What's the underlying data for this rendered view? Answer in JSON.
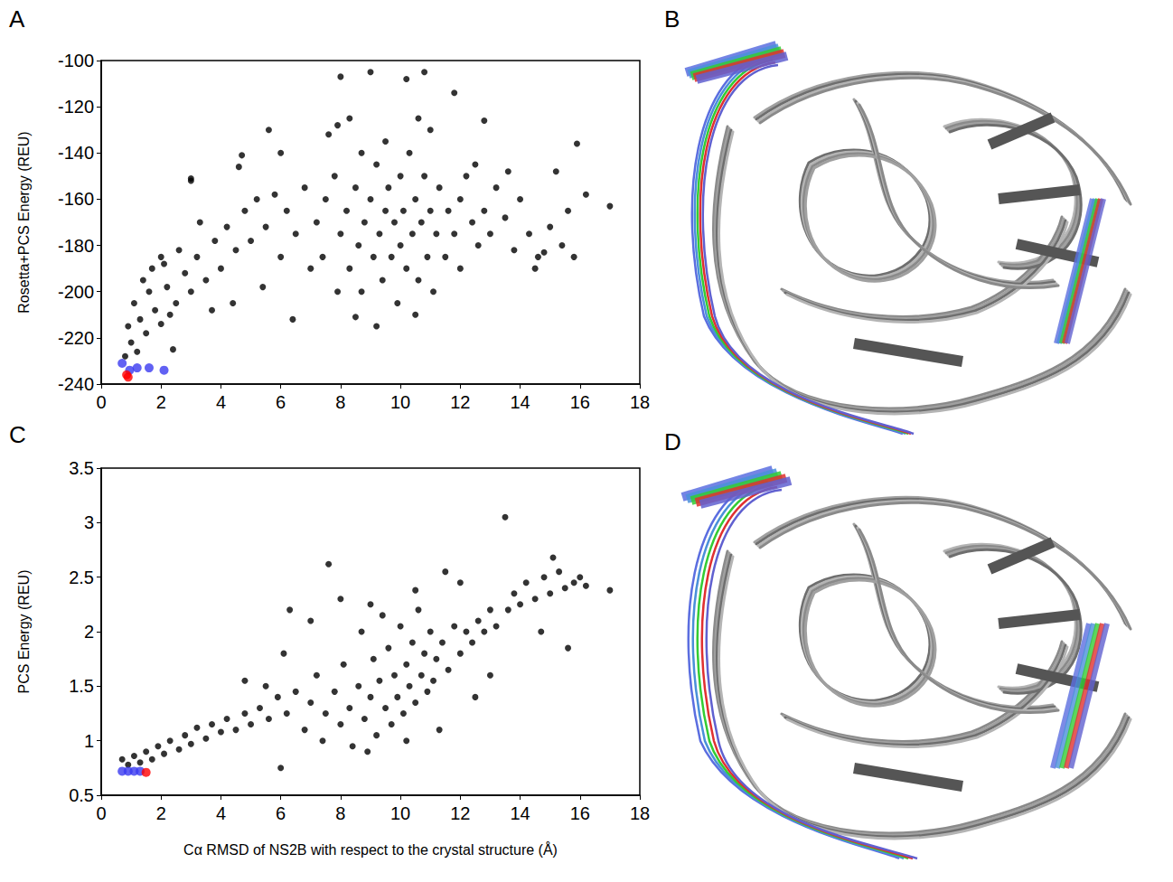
{
  "chart_data": [
    {
      "type": "scatter",
      "panel": "A",
      "ylabel": "Rosetta+PCS Energy (REU)",
      "xlim": [
        0,
        18
      ],
      "xticks": [
        0,
        2,
        4,
        6,
        8,
        10,
        12,
        14,
        16,
        18
      ],
      "ylim": [
        -240,
        -100
      ],
      "yticks": [
        -240,
        -220,
        -200,
        -180,
        -160,
        -140,
        -120,
        -100
      ],
      "grid": false,
      "series": [
        {
          "color": "#000000",
          "values": [
            [
              0.8,
              -228
            ],
            [
              1.0,
              -222
            ],
            [
              1.2,
              -226
            ],
            [
              0.9,
              -215
            ],
            [
              1.3,
              -212
            ],
            [
              1.5,
              -218
            ],
            [
              1.1,
              -205
            ],
            [
              1.6,
              -200
            ],
            [
              1.8,
              -208
            ],
            [
              2.0,
              -214
            ],
            [
              1.4,
              -195
            ],
            [
              2.2,
              -198
            ],
            [
              2.5,
              -205
            ],
            [
              2.1,
              -188
            ],
            [
              2.8,
              -192
            ],
            [
              3.0,
              -200
            ],
            [
              2.6,
              -182
            ],
            [
              3.2,
              -185
            ],
            [
              3.5,
              -195
            ],
            [
              2.4,
              -225
            ],
            [
              3.8,
              -178
            ],
            [
              4.0,
              -190
            ],
            [
              3.3,
              -170
            ],
            [
              4.2,
              -172
            ],
            [
              4.5,
              -182
            ],
            [
              3.0,
              -152
            ],
            [
              4.8,
              -165
            ],
            [
              5.0,
              -178
            ],
            [
              4.6,
              -146
            ],
            [
              5.2,
              -160
            ],
            [
              5.5,
              -172
            ],
            [
              5.8,
              -158
            ],
            [
              6.0,
              -185
            ],
            [
              5.4,
              -198
            ],
            [
              4.4,
              -205
            ],
            [
              6.2,
              -165
            ],
            [
              6.5,
              -175
            ],
            [
              6.8,
              -155
            ],
            [
              7.0,
              -190
            ],
            [
              7.2,
              -170
            ],
            [
              7.5,
              -160
            ],
            [
              7.4,
              -185
            ],
            [
              7.8,
              -150
            ],
            [
              7.9,
              -200
            ],
            [
              8.0,
              -175
            ],
            [
              8.2,
              -165
            ],
            [
              8.3,
              -190
            ],
            [
              8.5,
              -155
            ],
            [
              8.6,
              -180
            ],
            [
              8.8,
              -170
            ],
            [
              8.7,
              -200
            ],
            [
              9.0,
              -160
            ],
            [
              9.1,
              -185
            ],
            [
              9.2,
              -145
            ],
            [
              9.3,
              -175
            ],
            [
              9.4,
              -195
            ],
            [
              9.5,
              -165
            ],
            [
              9.6,
              -155
            ],
            [
              9.7,
              -185
            ],
            [
              9.8,
              -170
            ],
            [
              9.9,
              -205
            ],
            [
              10.0,
              -150
            ],
            [
              10.0,
              -180
            ],
            [
              10.1,
              -165
            ],
            [
              10.2,
              -190
            ],
            [
              10.3,
              -140
            ],
            [
              10.4,
              -175
            ],
            [
              10.5,
              -160
            ],
            [
              10.6,
              -195
            ],
            [
              10.7,
              -170
            ],
            [
              10.8,
              -150
            ],
            [
              10.9,
              -185
            ],
            [
              11.0,
              -165
            ],
            [
              11.1,
              -200
            ],
            [
              11.2,
              -175
            ],
            [
              11.3,
              -155
            ],
            [
              11.5,
              -185
            ],
            [
              11.6,
              -165
            ],
            [
              11.8,
              -175
            ],
            [
              12.0,
              -160
            ],
            [
              12.0,
              -190
            ],
            [
              12.2,
              -150
            ],
            [
              12.4,
              -170
            ],
            [
              12.6,
              -180
            ],
            [
              12.8,
              -165
            ],
            [
              13.0,
              -175
            ],
            [
              13.2,
              -155
            ],
            [
              13.5,
              -168
            ],
            [
              13.8,
              -182
            ],
            [
              14.0,
              -160
            ],
            [
              14.3,
              -175
            ],
            [
              14.6,
              -185
            ],
            [
              15.0,
              -172
            ],
            [
              15.2,
              -148
            ],
            [
              15.4,
              -180
            ],
            [
              15.6,
              -165
            ],
            [
              15.8,
              -185
            ],
            [
              15.9,
              -136
            ],
            [
              16.2,
              -158
            ],
            [
              17.0,
              -163
            ],
            [
              8.0,
              -107
            ],
            [
              9.0,
              -105
            ],
            [
              10.2,
              -108
            ],
            [
              10.8,
              -105
            ],
            [
              8.3,
              -125
            ],
            [
              11.8,
              -114
            ],
            [
              7.6,
              -132
            ],
            [
              12.8,
              -126
            ],
            [
              9.2,
              -215
            ],
            [
              8.5,
              -211
            ],
            [
              10.5,
              -210
            ],
            [
              6.4,
              -212
            ],
            [
              7.9,
              -128
            ],
            [
              6.0,
              -140
            ],
            [
              4.7,
              -141
            ],
            [
              3.0,
              -151
            ],
            [
              5.6,
              -130
            ],
            [
              2.0,
              -185
            ],
            [
              1.7,
              -190
            ],
            [
              2.3,
              -210
            ],
            [
              3.7,
              -208
            ],
            [
              12.5,
              -145
            ],
            [
              13.6,
              -148
            ],
            [
              14.5,
              -190
            ],
            [
              14.8,
              -183
            ],
            [
              11.0,
              -130
            ],
            [
              10.6,
              -125
            ],
            [
              9.5,
              -135
            ],
            [
              8.7,
              -140
            ]
          ]
        },
        {
          "color": "#3a3af0",
          "values": [
            [
              0.7,
              -231
            ],
            [
              0.95,
              -234
            ],
            [
              1.2,
              -233
            ],
            [
              1.6,
              -233
            ],
            [
              2.1,
              -234
            ]
          ]
        },
        {
          "color": "#ff0000",
          "values": [
            [
              0.85,
              -236
            ],
            [
              0.9,
              -237
            ]
          ]
        }
      ]
    },
    {
      "type": "scatter",
      "panel": "C",
      "ylabel": "PCS Energy (REU)",
      "xlabel": "Cα RMSD of NS2B with respect to the crystal structure (Å)",
      "xlim": [
        0,
        18
      ],
      "xticks": [
        0,
        2,
        4,
        6,
        8,
        10,
        12,
        14,
        16,
        18
      ],
      "ylim": [
        0.5,
        3.5
      ],
      "yticks": [
        0.5,
        1,
        1.5,
        2,
        2.5,
        3,
        3.5
      ],
      "grid": false,
      "series": [
        {
          "color": "#000000",
          "values": [
            [
              0.7,
              0.83
            ],
            [
              0.9,
              0.78
            ],
            [
              1.1,
              0.86
            ],
            [
              1.3,
              0.8
            ],
            [
              1.5,
              0.9
            ],
            [
              1.7,
              0.83
            ],
            [
              1.9,
              0.95
            ],
            [
              2.1,
              0.88
            ],
            [
              2.3,
              1.0
            ],
            [
              2.6,
              0.92
            ],
            [
              2.8,
              1.05
            ],
            [
              3.0,
              0.97
            ],
            [
              3.2,
              1.12
            ],
            [
              3.5,
              1.02
            ],
            [
              3.7,
              1.15
            ],
            [
              4.0,
              1.08
            ],
            [
              4.2,
              1.2
            ],
            [
              4.5,
              1.1
            ],
            [
              4.8,
              1.25
            ],
            [
              5.0,
              1.15
            ],
            [
              5.3,
              1.3
            ],
            [
              5.6,
              1.2
            ],
            [
              5.9,
              1.4
            ],
            [
              6.0,
              0.75
            ],
            [
              6.2,
              1.25
            ],
            [
              6.5,
              1.45
            ],
            [
              6.8,
              1.1
            ],
            [
              7.0,
              1.35
            ],
            [
              7.2,
              1.6
            ],
            [
              7.4,
              1.0
            ],
            [
              7.5,
              1.25
            ],
            [
              7.6,
              2.62
            ],
            [
              7.8,
              1.45
            ],
            [
              8.0,
              1.15
            ],
            [
              8.1,
              1.7
            ],
            [
              8.3,
              1.3
            ],
            [
              8.4,
              0.95
            ],
            [
              8.6,
              1.5
            ],
            [
              8.7,
              2.0
            ],
            [
              8.8,
              1.2
            ],
            [
              9.0,
              1.4
            ],
            [
              9.1,
              1.75
            ],
            [
              9.2,
              1.05
            ],
            [
              9.3,
              1.55
            ],
            [
              9.4,
              2.15
            ],
            [
              9.5,
              1.3
            ],
            [
              9.6,
              1.85
            ],
            [
              9.7,
              1.15
            ],
            [
              9.8,
              1.6
            ],
            [
              9.9,
              1.4
            ],
            [
              10.0,
              2.05
            ],
            [
              10.1,
              1.25
            ],
            [
              10.2,
              1.7
            ],
            [
              10.3,
              1.5
            ],
            [
              10.4,
              1.9
            ],
            [
              10.5,
              1.35
            ],
            [
              10.6,
              2.2
            ],
            [
              10.7,
              1.6
            ],
            [
              10.8,
              1.8
            ],
            [
              10.9,
              1.45
            ],
            [
              11.0,
              2.0
            ],
            [
              11.1,
              1.55
            ],
            [
              11.2,
              1.75
            ],
            [
              11.4,
              1.9
            ],
            [
              11.5,
              2.55
            ],
            [
              11.6,
              1.65
            ],
            [
              11.8,
              2.05
            ],
            [
              12.0,
              1.8
            ],
            [
              12.2,
              2.0
            ],
            [
              12.4,
              1.9
            ],
            [
              12.6,
              2.1
            ],
            [
              12.8,
              2.0
            ],
            [
              13.0,
              2.2
            ],
            [
              13.2,
              2.05
            ],
            [
              13.5,
              3.05
            ],
            [
              13.6,
              2.2
            ],
            [
              13.8,
              2.35
            ],
            [
              14.0,
              2.25
            ],
            [
              14.2,
              2.45
            ],
            [
              14.5,
              2.3
            ],
            [
              14.7,
              2.0
            ],
            [
              14.8,
              2.5
            ],
            [
              15.0,
              2.35
            ],
            [
              15.1,
              2.68
            ],
            [
              15.3,
              2.55
            ],
            [
              15.5,
              2.4
            ],
            [
              15.6,
              1.85
            ],
            [
              15.8,
              2.45
            ],
            [
              16.0,
              2.5
            ],
            [
              16.2,
              2.42
            ],
            [
              17.0,
              2.38
            ],
            [
              6.3,
              2.2
            ],
            [
              7.0,
              2.1
            ],
            [
              8.0,
              2.3
            ],
            [
              9.0,
              2.25
            ],
            [
              10.5,
              2.38
            ],
            [
              12.0,
              2.45
            ],
            [
              4.8,
              1.55
            ],
            [
              5.5,
              1.5
            ],
            [
              6.1,
              1.8
            ],
            [
              8.9,
              0.9
            ],
            [
              10.2,
              1.0
            ],
            [
              11.3,
              1.1
            ],
            [
              12.5,
              1.4
            ],
            [
              13.0,
              1.6
            ]
          ]
        },
        {
          "color": "#3a3af0",
          "values": [
            [
              0.7,
              0.72
            ],
            [
              0.9,
              0.72
            ],
            [
              1.1,
              0.72
            ],
            [
              1.3,
              0.72
            ]
          ]
        },
        {
          "color": "#ff0000",
          "values": [
            [
              1.5,
              0.71
            ]
          ]
        }
      ]
    }
  ],
  "diagrams": [
    {
      "panel": "B"
    },
    {
      "panel": "D"
    }
  ]
}
